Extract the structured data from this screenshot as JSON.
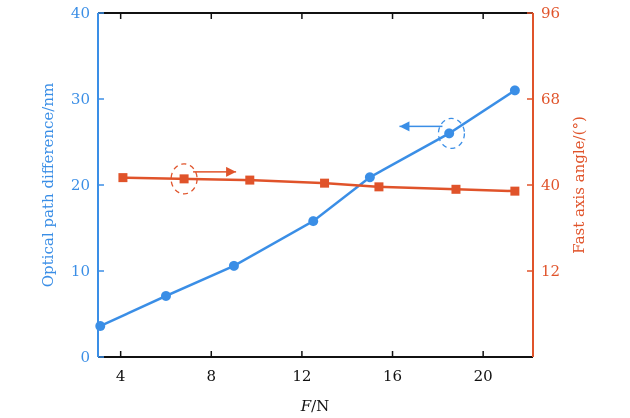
{
  "chart_data": {
    "type": "line",
    "title": "",
    "xlabel_italic": "F",
    "xlabel_rest": "/N",
    "x_ticks": [
      4,
      8,
      12,
      16,
      20
    ],
    "xlim": [
      3,
      22.2
    ],
    "left_axis": {
      "label": "Optical path difference/nm",
      "ticks": [
        0,
        10,
        20,
        30,
        40
      ],
      "ylim": [
        0,
        40
      ],
      "color": "#3a8ee6"
    },
    "right_axis": {
      "label": "Fast axis angle/(°)",
      "ticks": [
        12,
        40,
        68,
        96
      ],
      "ylim": [
        -16,
        96
      ],
      "color": "#e0532a"
    },
    "series": [
      {
        "axis": "left",
        "marker": "circle",
        "color": "#3a8ee6",
        "x": [
          3.1,
          6.0,
          9.0,
          12.5,
          15.0,
          18.5,
          21.4
        ],
        "y": [
          3.6,
          7.1,
          10.6,
          15.8,
          20.9,
          26.0,
          31.0
        ]
      },
      {
        "axis": "right",
        "marker": "square",
        "color": "#e0532a",
        "x": [
          4.1,
          6.8,
          9.7,
          13.0,
          15.4,
          18.8,
          21.4
        ],
        "y": [
          42.4,
          42.0,
          41.6,
          40.6,
          39.4,
          38.6,
          38.0
        ]
      }
    ],
    "annotations": [
      {
        "series": 0,
        "at": [
          18.6,
          26.0
        ],
        "direction": "left"
      },
      {
        "series": 1,
        "at": [
          6.8,
          42.0
        ],
        "direction": "right"
      }
    ]
  }
}
